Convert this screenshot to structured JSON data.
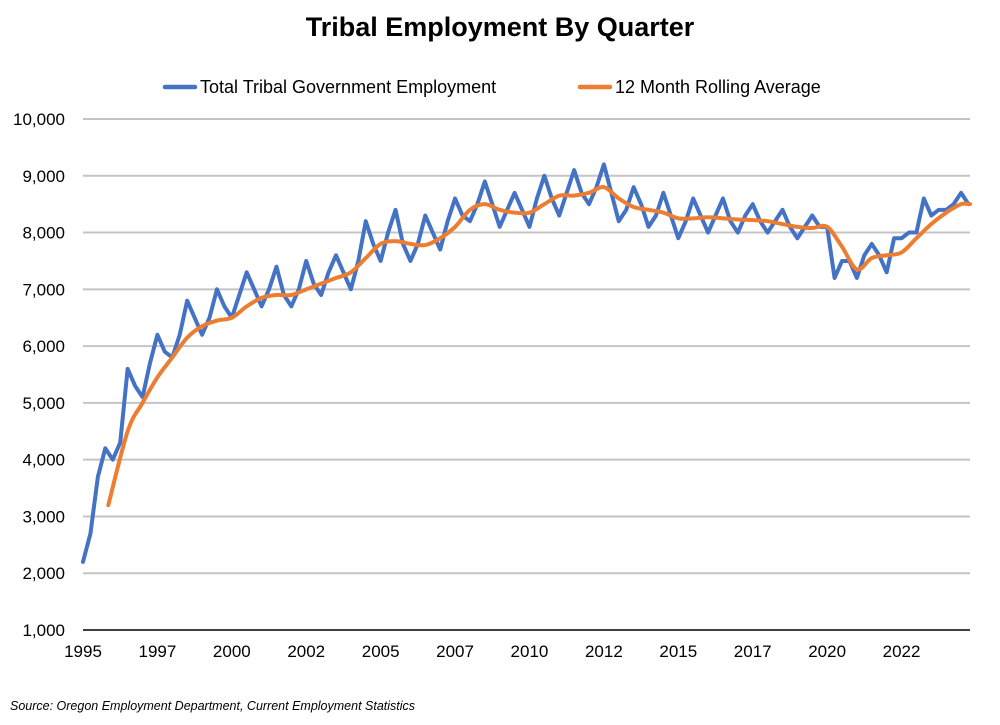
{
  "chart_data": {
    "type": "line",
    "title": "Tribal Employment By Quarter",
    "source": "Source: Oregon Employment Department, Current Employment Statistics",
    "xlabel": "",
    "ylabel": "",
    "xlim": [
      1995,
      2024.8
    ],
    "ylim": [
      1000,
      10000
    ],
    "y_ticks": [
      1000,
      2000,
      3000,
      4000,
      5000,
      6000,
      7000,
      8000,
      9000,
      10000
    ],
    "y_tick_labels": [
      "1,000",
      "2,000",
      "3,000",
      "4,000",
      "5,000",
      "6,000",
      "7,000",
      "8,000",
      "9,000",
      "10,000"
    ],
    "x_ticks": [
      1995,
      1997.5,
      2000,
      2002.5,
      2005,
      2007.5,
      2010,
      2012.5,
      2015,
      2017.5,
      2020,
      2022.5
    ],
    "x_tick_labels": [
      "1995",
      "1997",
      "2000",
      "2002",
      "2005",
      "2007",
      "2010",
      "2012",
      "2015",
      "2017",
      "2020",
      "2022"
    ],
    "grid": true,
    "legend_position": "top-center",
    "series": [
      {
        "name": "Total Tribal Government Employment",
        "color": "#4472C4",
        "x_start": 1995,
        "x_step": 0.25,
        "values": [
          2200,
          2700,
          3700,
          4200,
          4000,
          4300,
          5600,
          5300,
          5100,
          5700,
          6200,
          5900,
          5800,
          6200,
          6800,
          6500,
          6200,
          6500,
          7000,
          6700,
          6500,
          6900,
          7300,
          7000,
          6700,
          7000,
          7400,
          6900,
          6700,
          7000,
          7500,
          7100,
          6900,
          7300,
          7600,
          7300,
          7000,
          7500,
          8200,
          7800,
          7500,
          8000,
          8400,
          7800,
          7500,
          7800,
          8300,
          8000,
          7700,
          8200,
          8600,
          8300,
          8200,
          8500,
          8900,
          8500,
          8100,
          8400,
          8700,
          8400,
          8100,
          8600,
          9000,
          8600,
          8300,
          8700,
          9100,
          8700,
          8500,
          8800,
          9200,
          8700,
          8200,
          8400,
          8800,
          8500,
          8100,
          8300,
          8700,
          8300,
          7900,
          8200,
          8600,
          8300,
          8000,
          8300,
          8600,
          8200,
          8000,
          8300,
          8500,
          8200,
          8000,
          8200,
          8400,
          8100,
          7900,
          8100,
          8300,
          8100,
          8100,
          7200,
          7500,
          7500,
          7200,
          7600,
          7800,
          7600,
          7300,
          7900,
          7900,
          8000,
          8000,
          8600,
          8300,
          8400,
          8400,
          8500,
          8700,
          8500
        ]
      },
      {
        "name": "12 Month Rolling Average",
        "color": "#ED7D31",
        "points": [
          [
            1995.85,
            3200
          ],
          [
            1996.5,
            4500
          ],
          [
            1997,
            5000
          ],
          [
            1997.5,
            5450
          ],
          [
            1998,
            5800
          ],
          [
            1998.5,
            6150
          ],
          [
            1999,
            6350
          ],
          [
            1999.5,
            6450
          ],
          [
            2000,
            6500
          ],
          [
            2000.5,
            6700
          ],
          [
            2001,
            6850
          ],
          [
            2001.5,
            6900
          ],
          [
            2002,
            6900
          ],
          [
            2002.5,
            7000
          ],
          [
            2003,
            7100
          ],
          [
            2003.5,
            7200
          ],
          [
            2004,
            7300
          ],
          [
            2004.5,
            7550
          ],
          [
            2005,
            7800
          ],
          [
            2005.5,
            7850
          ],
          [
            2006,
            7800
          ],
          [
            2006.5,
            7780
          ],
          [
            2007,
            7900
          ],
          [
            2007.5,
            8100
          ],
          [
            2008,
            8400
          ],
          [
            2008.5,
            8500
          ],
          [
            2009,
            8400
          ],
          [
            2009.5,
            8350
          ],
          [
            2010,
            8350
          ],
          [
            2010.5,
            8500
          ],
          [
            2011,
            8650
          ],
          [
            2011.5,
            8650
          ],
          [
            2012,
            8700
          ],
          [
            2012.5,
            8800
          ],
          [
            2013,
            8600
          ],
          [
            2013.5,
            8450
          ],
          [
            2014,
            8400
          ],
          [
            2014.5,
            8350
          ],
          [
            2015,
            8250
          ],
          [
            2015.5,
            8250
          ],
          [
            2016,
            8270
          ],
          [
            2016.5,
            8250
          ],
          [
            2017,
            8230
          ],
          [
            2017.5,
            8220
          ],
          [
            2018,
            8200
          ],
          [
            2018.5,
            8150
          ],
          [
            2019,
            8100
          ],
          [
            2019.5,
            8080
          ],
          [
            2020,
            8100
          ],
          [
            2020.5,
            7750
          ],
          [
            2021,
            7350
          ],
          [
            2021.5,
            7550
          ],
          [
            2022,
            7600
          ],
          [
            2022.5,
            7650
          ],
          [
            2023,
            7900
          ],
          [
            2023.5,
            8150
          ],
          [
            2024,
            8350
          ],
          [
            2024.5,
            8500
          ],
          [
            2024.8,
            8500
          ]
        ]
      }
    ]
  }
}
